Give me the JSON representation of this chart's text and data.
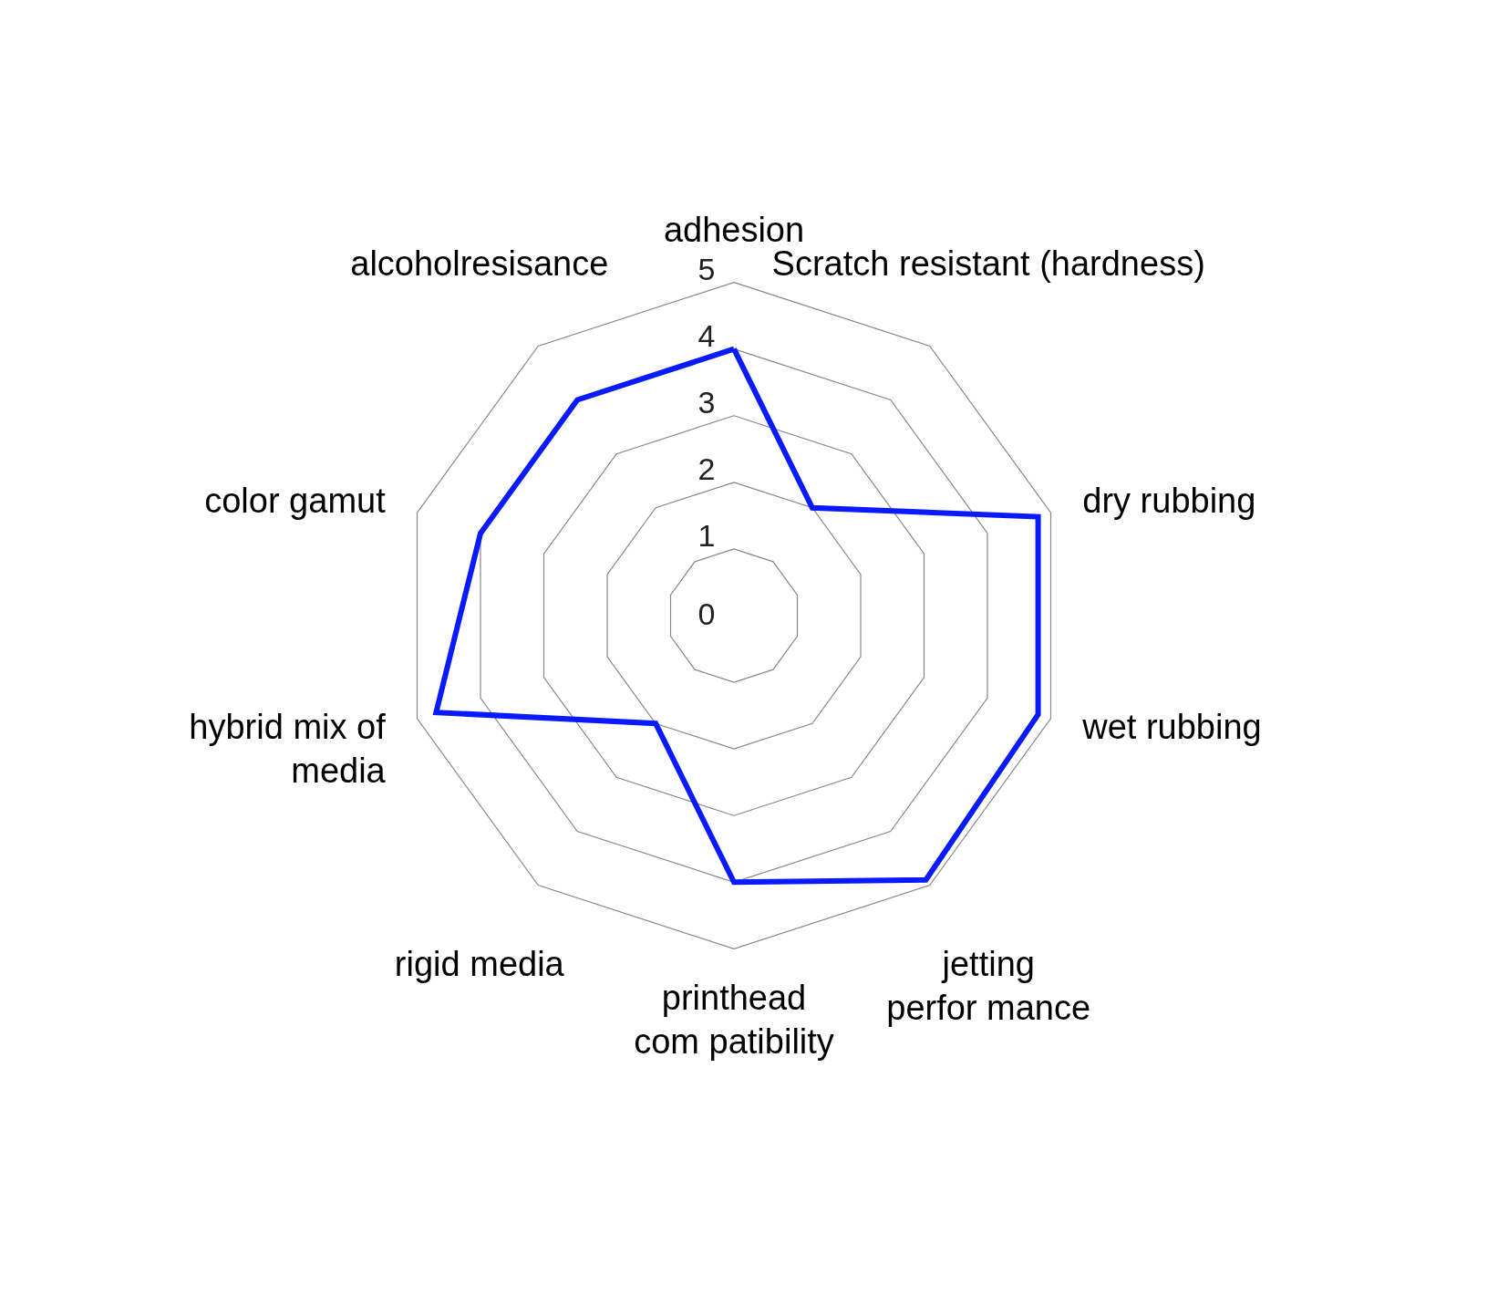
{
  "chart_data": {
    "type": "radar",
    "categories": [
      "adhesion",
      "Scratch resistant (hardness)",
      "dry rubbing",
      "wet rubbing",
      "jetting\nperfor mance",
      "printhead\ncom patibility",
      "rigid media",
      "hybrid mix of\nmedia",
      "color gamut",
      "alcoholresisance"
    ],
    "series": [
      {
        "color": "#0a1aff",
        "values": [
          4,
          2,
          4.8,
          4.8,
          4.9,
          4,
          2,
          4.7,
          4,
          4
        ]
      }
    ],
    "ylim": [
      0,
      5
    ],
    "yticks": [
      0,
      1,
      2,
      3,
      4,
      5
    ],
    "grid": true
  }
}
